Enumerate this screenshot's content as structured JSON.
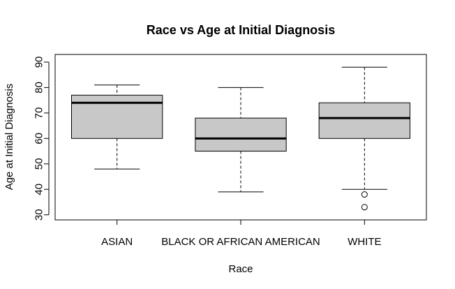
{
  "chart_data": {
    "type": "boxplot",
    "title": "Race vs Age at Initial Diagnosis",
    "xlabel": "Race",
    "ylabel": "Age at Initial Diagnosis",
    "ylim": [
      28,
      93
    ],
    "yticks": [
      30,
      40,
      50,
      60,
      70,
      80,
      90
    ],
    "grid": false,
    "box_fill": "#c8c8c8",
    "categories": [
      "ASIAN",
      "BLACK OR AFRICAN AMERICAN",
      "WHITE"
    ],
    "boxes": [
      {
        "category": "ASIAN",
        "whisker_low": 48,
        "q1": 60,
        "median": 74,
        "q3": 77,
        "whisker_high": 81,
        "outliers": []
      },
      {
        "category": "BLACK OR AFRICAN AMERICAN",
        "whisker_low": 39,
        "q1": 55,
        "median": 60,
        "q3": 68,
        "whisker_high": 80,
        "outliers": []
      },
      {
        "category": "WHITE",
        "whisker_low": 40,
        "q1": 60,
        "median": 68,
        "q3": 74,
        "whisker_high": 88,
        "outliers": [
          38,
          33
        ]
      }
    ]
  }
}
